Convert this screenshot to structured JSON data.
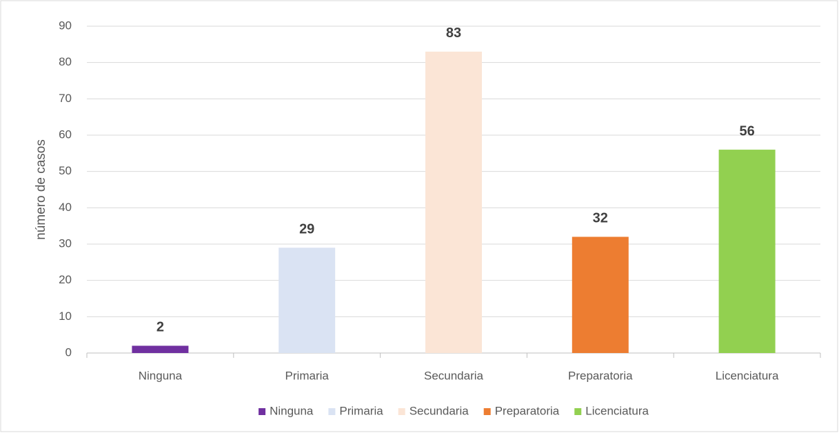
{
  "chart_data": {
    "type": "bar",
    "y_label": "número de casos",
    "categories": [
      "Ninguna",
      "Primaria",
      "Secundaria",
      "Preparatoria",
      "Licenciatura"
    ],
    "values": [
      2,
      29,
      83,
      32,
      56
    ],
    "colors": [
      "#7030a0",
      "#dae3f3",
      "#fbe5d6",
      "#ed7d31",
      "#92d050"
    ],
    "ylim": [
      0,
      90
    ],
    "yticks": [
      0,
      10,
      20,
      30,
      40,
      50,
      60,
      70,
      80,
      90
    ],
    "grid": true,
    "legend": "bottom"
  }
}
